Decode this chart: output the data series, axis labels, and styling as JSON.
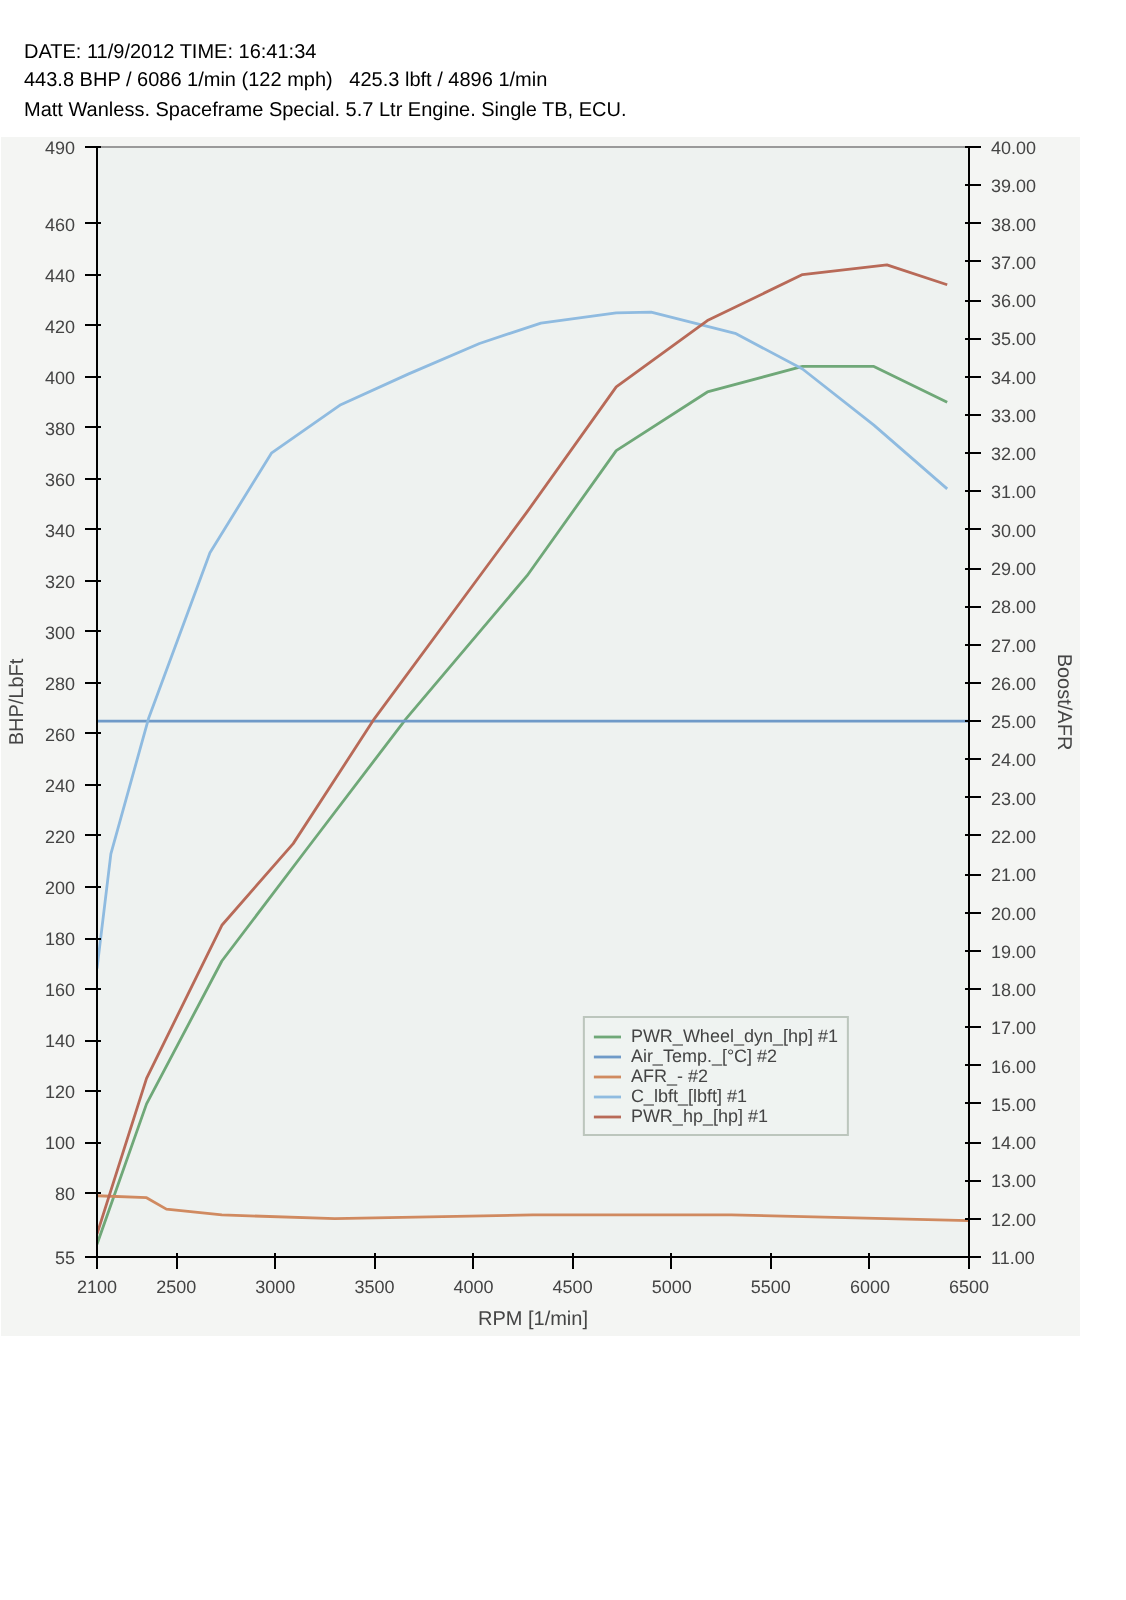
{
  "chart_data": {
    "type": "line",
    "annotations": [
      "DATE: 11/9/2012 TIME: 16:41:34",
      "443.8 BHP / 6086 1/min (122 mph)   425.3 lbft / 4896 1/min",
      "Matt Wanless. Spaceframe Special. 5.7 Ltr Engine. Single TB, ECU."
    ],
    "xlabel": "RPM [1/min]",
    "ylabel": "BHP/LbFt",
    "y2label": "Boost/AFR",
    "xlim": [
      2100,
      6500
    ],
    "xticks": [
      2100,
      2500,
      3000,
      3500,
      4000,
      4500,
      5000,
      5500,
      6000,
      6500
    ],
    "ylim": [
      55,
      490
    ],
    "yticks": [
      55,
      80,
      100,
      120,
      140,
      160,
      180,
      200,
      220,
      240,
      260,
      280,
      300,
      320,
      340,
      360,
      380,
      400,
      420,
      440,
      460,
      490
    ],
    "y2lim": [
      11,
      40
    ],
    "y2ticks": [
      {
        "value": 11,
        "label": "11.00"
      },
      {
        "value": 12,
        "label": "12.00"
      },
      {
        "value": 13,
        "label": "13.00"
      },
      {
        "value": 14,
        "label": "14.00"
      },
      {
        "value": 15,
        "label": "15.00"
      },
      {
        "value": 16,
        "label": "16.00"
      },
      {
        "value": 17,
        "label": "17.00"
      },
      {
        "value": 18,
        "label": "18.00"
      },
      {
        "value": 19,
        "label": "19.00"
      },
      {
        "value": 20,
        "label": "20.00"
      },
      {
        "value": 21,
        "label": "21.00"
      },
      {
        "value": 22,
        "label": "22.00"
      },
      {
        "value": 23,
        "label": "23.00"
      },
      {
        "value": 24,
        "label": "24.00"
      },
      {
        "value": 25,
        "label": "25.00"
      },
      {
        "value": 26,
        "label": "26.00"
      },
      {
        "value": 27,
        "label": "27.00"
      },
      {
        "value": 28,
        "label": "28.00"
      },
      {
        "value": 29,
        "label": "29.00"
      },
      {
        "value": 30,
        "label": "30.00"
      },
      {
        "value": 31,
        "label": "31.00"
      },
      {
        "value": 32,
        "label": "32.00"
      },
      {
        "value": 33,
        "label": "33.00"
      },
      {
        "value": 34,
        "label": "34.00"
      },
      {
        "value": 35,
        "label": "35.00"
      },
      {
        "value": 36,
        "label": "36.00"
      },
      {
        "value": 37,
        "label": "37.00"
      },
      {
        "value": 38,
        "label": "38.00"
      },
      {
        "value": 39,
        "label": "39.00"
      },
      {
        "value": 40,
        "label": "40.00"
      }
    ],
    "grid": false,
    "legend": "bottom right",
    "series": [
      {
        "name": "PWR_Wheel_dyn_[hp] #1",
        "color": "#6fa878",
        "x": [
          2100,
          2350,
          2730,
          3150,
          3660,
          4270,
          4720,
          5180,
          5660,
          6020,
          6390
        ],
        "values": [
          60,
          115,
          171,
          214,
          266,
          322,
          371,
          394,
          404,
          404,
          390
        ]
      },
      {
        "name": "Air_Temp._[°C] #2",
        "color": "#6f9ac8",
        "axis": "y2",
        "x": [
          2100,
          6500
        ],
        "values": [
          25,
          25
        ]
      },
      {
        "name": "AFR_- #2",
        "color": "#d08a60",
        "axis": "y2",
        "x": [
          2100,
          2350,
          2450,
          2730,
          3300,
          4300,
          5300,
          6500
        ],
        "values": [
          12.6,
          12.55,
          12.25,
          12.1,
          12.0,
          12.1,
          12.1,
          11.95
        ]
      },
      {
        "name": "C_lbft_[lbft] #1",
        "color": "#8fbbe0",
        "x": [
          2100,
          2170,
          2360,
          2670,
          2980,
          3330,
          3670,
          4030,
          4340,
          4720,
          4896,
          5320,
          5660,
          6020,
          6390
        ],
        "values": [
          168,
          213,
          266,
          331,
          370,
          389,
          401,
          413,
          421,
          425,
          425.3,
          417,
          403,
          381,
          356
        ]
      },
      {
        "name": "PWR_hp_[hp] #1",
        "color": "#b86a58",
        "x": [
          2100,
          2350,
          2730,
          3090,
          3500,
          4270,
          4720,
          5180,
          5660,
          6086,
          6390
        ],
        "values": [
          64,
          125,
          185,
          217,
          266,
          347,
          396,
          422,
          440,
          443.8,
          436
        ]
      }
    ]
  }
}
